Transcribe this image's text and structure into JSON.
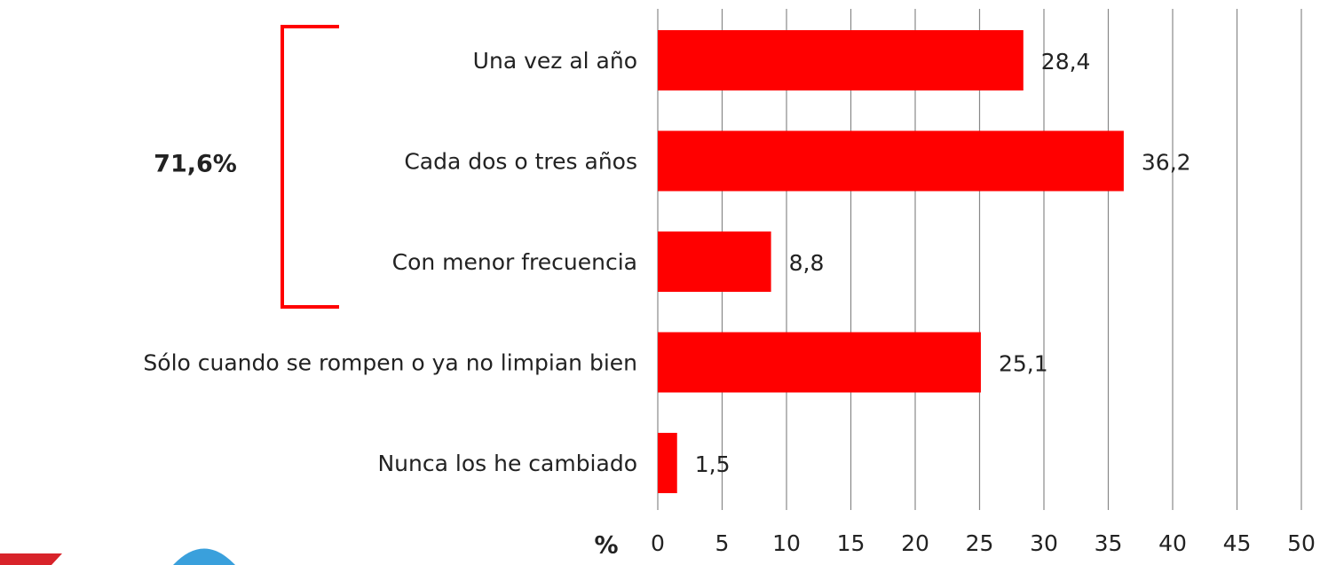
{
  "chart_data": {
    "type": "bar",
    "orientation": "horizontal",
    "categories": [
      "Una vez al año",
      "Cada dos o tres años",
      "Con menor frecuencia",
      "Sólo cuando se rompen o ya no limpian bien",
      "Nunca los he cambiado"
    ],
    "values": [
      28.4,
      36.2,
      8.8,
      25.1,
      1.5
    ],
    "value_labels": [
      "28,4",
      "36,2",
      "8,8",
      "25,1",
      "1,5"
    ],
    "color": "#ff0000",
    "xlabel": "%",
    "xlim": [
      0,
      50
    ],
    "xticks": [
      0,
      5,
      10,
      15,
      20,
      25,
      30,
      35,
      40,
      45,
      50
    ],
    "grid": true,
    "annotation": "71,6%"
  }
}
